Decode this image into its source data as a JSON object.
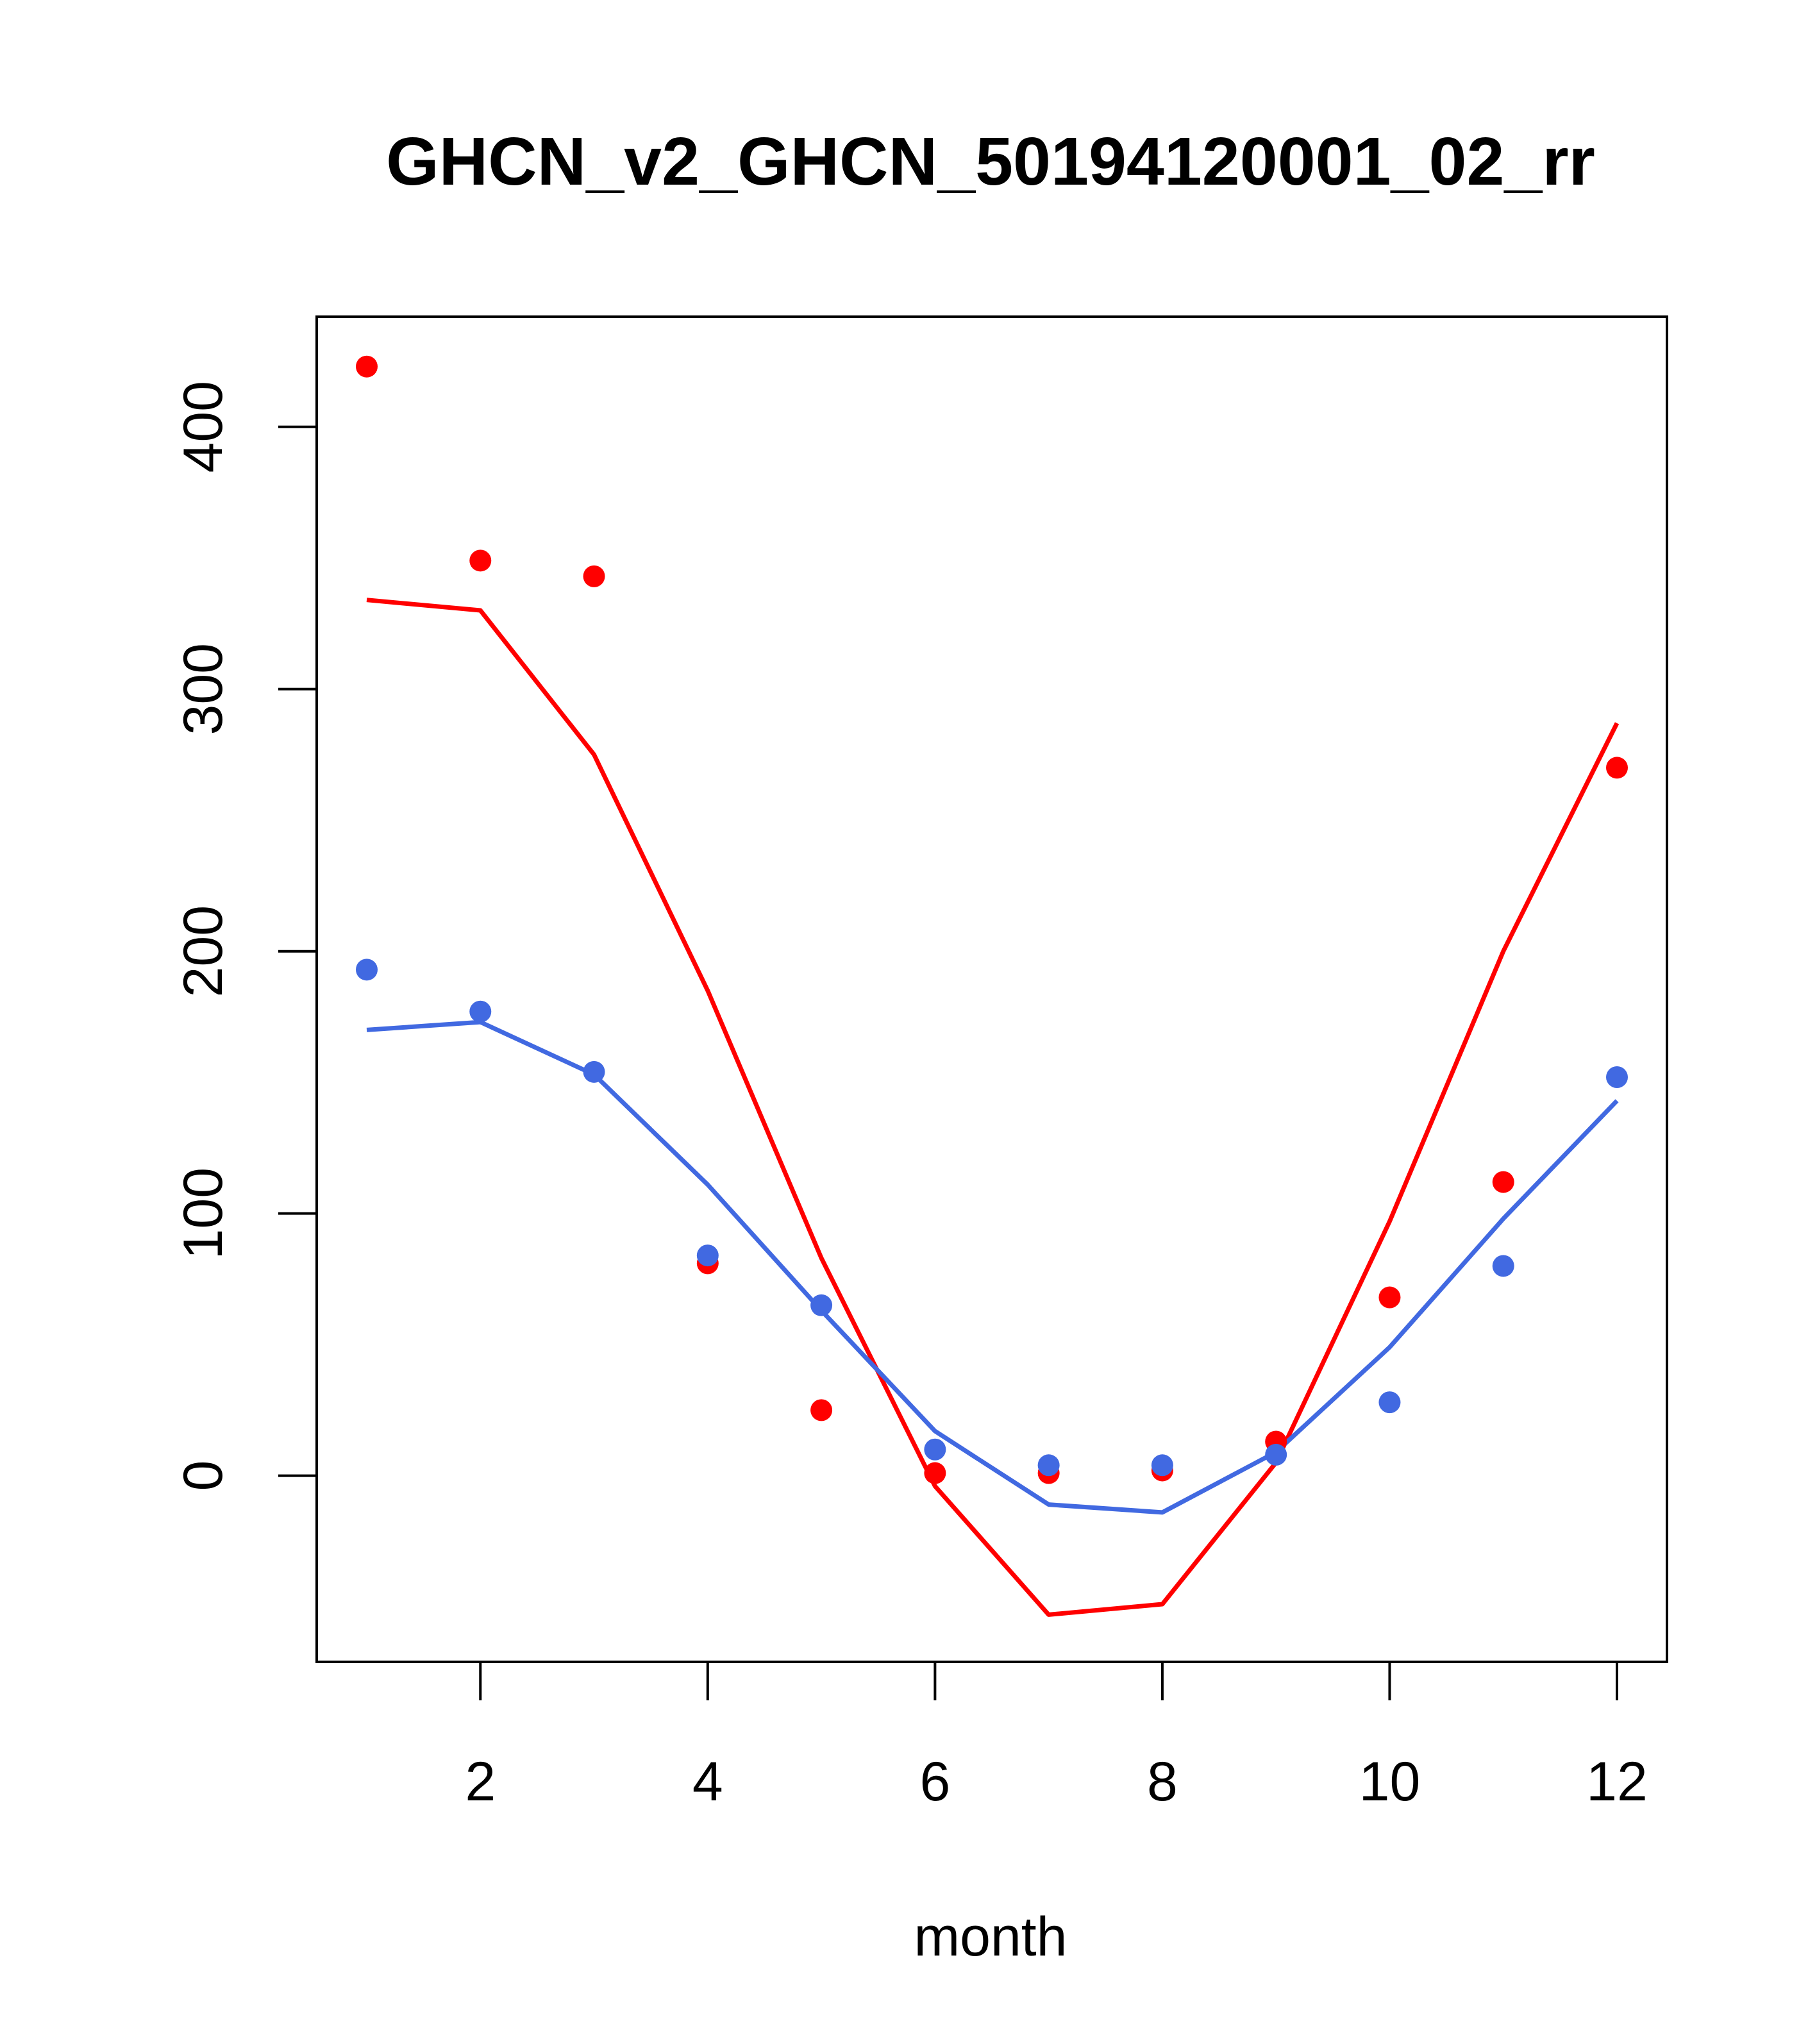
{
  "chart_data": {
    "type": "line",
    "title": "GHCN_v2_GHCN_50194120001_02_rr",
    "xlabel": "month",
    "ylabel": "",
    "xlim": [
      0.56,
      12.44
    ],
    "ylim": [
      -71,
      442
    ],
    "x_ticks": [
      2,
      4,
      6,
      8,
      10,
      12
    ],
    "y_ticks": [
      0,
      100,
      200,
      300,
      400
    ],
    "grid": false,
    "legend": "none",
    "x": [
      1,
      2,
      3,
      4,
      5,
      6,
      7,
      8,
      9,
      10,
      11,
      12
    ],
    "series": [
      {
        "color": "#ff0000",
        "points": [
          423,
          349,
          343,
          81,
          25,
          1,
          1,
          2,
          13,
          68,
          112,
          270
        ],
        "line": [
          334,
          330,
          275,
          185,
          83,
          -4,
          -53,
          -49,
          5,
          97,
          200,
          287
        ]
      },
      {
        "color": "#4169e1",
        "points": [
          193,
          177,
          154,
          84,
          65,
          10,
          4,
          4,
          8,
          28,
          80,
          152
        ],
        "line": [
          170,
          173,
          153,
          111,
          63,
          17,
          -11,
          -14,
          9,
          49,
          98,
          143
        ]
      }
    ]
  }
}
